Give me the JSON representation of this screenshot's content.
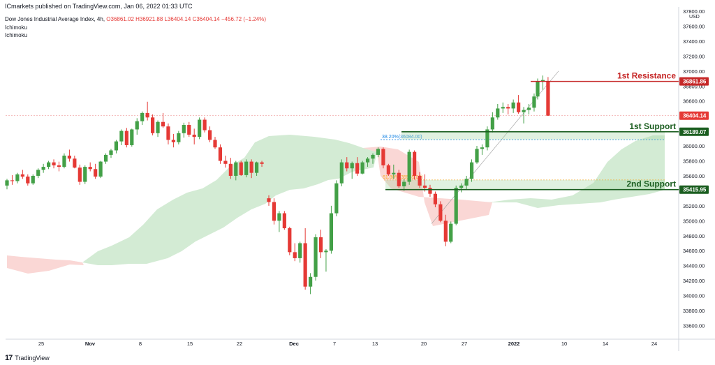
{
  "header": {
    "published": "ICmarkets published on TradingView.com, Jan 06, 2022 01:33 UTC",
    "symbol": "Dow Jones Industrial Average Index, 4h,",
    "open": "O36861.02",
    "high": "H36921.88",
    "low": "L36404.14",
    "close": "C36404.14",
    "change": "−456.72 (−1.24%)",
    "indicators": [
      "Ichimoku",
      "Ichimoku"
    ]
  },
  "axis": {
    "currency": "USD",
    "x_ticks": [
      "25",
      "Nov",
      "8",
      "15",
      "22",
      "Dec",
      "7",
      "13",
      "20",
      "27",
      "2022",
      "10",
      "14",
      "24"
    ]
  },
  "footer": {
    "logo": "17",
    "brand": "TradingView"
  },
  "chart_data": {
    "type": "candlestick",
    "title": "Dow Jones Industrial Average Index, 4h",
    "ylabel": "USD",
    "ylim": [
      33400,
      37800
    ],
    "y_ticks": [
      33600,
      33800,
      34000,
      34200,
      34400,
      34600,
      34800,
      35000,
      35200,
      35400,
      35600,
      35800,
      36000,
      36200,
      36400,
      36600,
      36800,
      37000,
      37200,
      37400,
      37600,
      37800
    ],
    "y_tick_labels": [
      "33600.00",
      "33800.00",
      "34000.00",
      "34200.00",
      "34400.00",
      "34600.00",
      "34800.00",
      "35000.00",
      "35200.00",
      "35400.00",
      "35600.00",
      "35800.00",
      "36000.00",
      "36200.00",
      "36400.00",
      "36600.00",
      "36800.00",
      "37000.00",
      "37200.00",
      "37400.00",
      "37600.00",
      "37800.00"
    ],
    "price_tags": [
      {
        "label": "36861.86",
        "value": 36861.86,
        "color": "#c62828"
      },
      {
        "label": "36404.14",
        "value": 36404.14,
        "color": "#e53935"
      },
      {
        "label": "36189.07",
        "value": 36189.07,
        "color": "#1b5e20"
      },
      {
        "label": "35415.95",
        "value": 35415.95,
        "color": "#1b5e20"
      }
    ],
    "levels": [
      {
        "name": "1st Resistance",
        "value": 36861.86,
        "color": "#c62828"
      },
      {
        "name": "1st Support",
        "value": 36189.07,
        "color": "#1b5e20"
      },
      {
        "name": "2nd Support",
        "value": 35415.95,
        "color": "#1b5e20"
      }
    ],
    "fibonacci": [
      {
        "label": "38.20%(36084.00)",
        "value": 36084.0,
        "color": "#1e88e5"
      },
      {
        "label": "61.80%(35545.00)",
        "value": 35545.0,
        "color": "#f9a825"
      }
    ],
    "candles": [
      [
        35470,
        35560,
        35420,
        35540
      ],
      [
        35540,
        35610,
        35480,
        35530
      ],
      [
        35530,
        35640,
        35500,
        35620
      ],
      [
        35620,
        35680,
        35560,
        35590
      ],
      [
        35590,
        35620,
        35470,
        35500
      ],
      [
        35500,
        35620,
        35480,
        35600
      ],
      [
        35600,
        35700,
        35570,
        35680
      ],
      [
        35680,
        35760,
        35640,
        35720
      ],
      [
        35720,
        35800,
        35690,
        35780
      ],
      [
        35780,
        35820,
        35700,
        35740
      ],
      [
        35740,
        35790,
        35660,
        35720
      ],
      [
        35720,
        35900,
        35700,
        35870
      ],
      [
        35870,
        35950,
        35790,
        35830
      ],
      [
        35830,
        35870,
        35700,
        35710
      ],
      [
        35710,
        35750,
        35480,
        35520
      ],
      [
        35520,
        35740,
        35490,
        35720
      ],
      [
        35720,
        35780,
        35660,
        35690
      ],
      [
        35690,
        35760,
        35560,
        35590
      ],
      [
        35590,
        35800,
        35570,
        35790
      ],
      [
        35790,
        35900,
        35760,
        35880
      ],
      [
        35880,
        35960,
        35840,
        35940
      ],
      [
        35940,
        36080,
        35900,
        36060
      ],
      [
        36060,
        36220,
        36010,
        36200
      ],
      [
        36200,
        36240,
        35980,
        36010
      ],
      [
        36010,
        36230,
        35990,
        36220
      ],
      [
        36220,
        36370,
        36150,
        36330
      ],
      [
        36330,
        36460,
        36280,
        36440
      ],
      [
        36440,
        36590,
        36340,
        36380
      ],
      [
        36380,
        36420,
        36140,
        36170
      ],
      [
        36170,
        36340,
        36120,
        36320
      ],
      [
        36320,
        36440,
        36240,
        36260
      ],
      [
        36260,
        36300,
        36020,
        36080
      ],
      [
        36080,
        36160,
        35980,
        36050
      ],
      [
        36050,
        36200,
        36020,
        36170
      ],
      [
        36170,
        36310,
        36110,
        36280
      ],
      [
        36280,
        36320,
        36120,
        36150
      ],
      [
        36150,
        36230,
        36020,
        36120
      ],
      [
        36120,
        36380,
        36090,
        36350
      ],
      [
        36350,
        36380,
        36180,
        36210
      ],
      [
        36210,
        36260,
        36050,
        36080
      ],
      [
        36080,
        36120,
        35960,
        35980
      ],
      [
        35980,
        36020,
        35760,
        35800
      ],
      [
        35800,
        35870,
        35710,
        35760
      ],
      [
        35760,
        35840,
        35560,
        35600
      ],
      [
        35600,
        35800,
        35540,
        35780
      ],
      [
        35780,
        35800,
        35600,
        35610
      ],
      [
        35610,
        35820,
        35580,
        35790
      ],
      [
        35790,
        35820,
        35570,
        35640
      ],
      [
        35640,
        35790,
        35600,
        35780
      ],
      [
        35780,
        35800,
        35720,
        35760
      ],
      [
        35300,
        35340,
        35200,
        35250
      ],
      [
        35250,
        35300,
        34950,
        35000
      ],
      [
        35000,
        35130,
        34850,
        35100
      ],
      [
        35100,
        35130,
        34880,
        34900
      ],
      [
        34900,
        34920,
        34540,
        34580
      ],
      [
        34580,
        34700,
        34460,
        34500
      ],
      [
        34500,
        34720,
        34440,
        34700
      ],
      [
        34700,
        34900,
        34080,
        34120
      ],
      [
        34120,
        34300,
        34020,
        34250
      ],
      [
        34250,
        34820,
        34200,
        34780
      ],
      [
        34780,
        34880,
        34500,
        34580
      ],
      [
        34580,
        34620,
        34320,
        34600
      ],
      [
        34600,
        35200,
        34560,
        35100
      ],
      [
        35100,
        35540,
        35060,
        35500
      ],
      [
        35500,
        35820,
        35460,
        35780
      ],
      [
        35780,
        35850,
        35660,
        35700
      ],
      [
        35700,
        35790,
        35560,
        35770
      ],
      [
        35770,
        35850,
        35600,
        35630
      ],
      [
        35630,
        35800,
        35620,
        35780
      ],
      [
        35780,
        35850,
        35720,
        35830
      ],
      [
        35830,
        35900,
        35760,
        35880
      ],
      [
        35880,
        35980,
        35850,
        35960
      ],
      [
        35960,
        35980,
        35700,
        35740
      ],
      [
        35740,
        35760,
        35600,
        35620
      ],
      [
        35620,
        35750,
        35560,
        35640
      ],
      [
        35640,
        35680,
        35440,
        35460
      ],
      [
        35460,
        35560,
        35400,
        35520
      ],
      [
        35520,
        35950,
        35480,
        35920
      ],
      [
        35920,
        35940,
        35550,
        35600
      ],
      [
        35600,
        35650,
        35440,
        35470
      ],
      [
        35470,
        35620,
        35390,
        35440
      ],
      [
        35440,
        35480,
        35320,
        35360
      ],
      [
        35360,
        35390,
        35180,
        35220
      ],
      [
        35220,
        35260,
        34980,
        35000
      ],
      [
        35000,
        35080,
        34660,
        34720
      ],
      [
        34720,
        34990,
        34700,
        34960
      ],
      [
        34960,
        35470,
        34940,
        35440
      ],
      [
        35440,
        35500,
        35380,
        35470
      ],
      [
        35470,
        35600,
        35420,
        35560
      ],
      [
        35560,
        35820,
        35520,
        35780
      ],
      [
        35780,
        36000,
        35760,
        35960
      ],
      [
        35960,
        36020,
        35880,
        35980
      ],
      [
        35980,
        36260,
        35940,
        36220
      ],
      [
        36220,
        36450,
        36180,
        36380
      ],
      [
        36380,
        36560,
        36350,
        36500
      ],
      [
        36500,
        36580,
        36440,
        36520
      ],
      [
        36520,
        36560,
        36420,
        36500
      ],
      [
        36500,
        36620,
        36440,
        36580
      ],
      [
        36580,
        36680,
        36430,
        36450
      ],
      [
        36450,
        36520,
        36300,
        36480
      ],
      [
        36480,
        36560,
        36420,
        36510
      ],
      [
        36510,
        36700,
        36460,
        36660
      ],
      [
        36660,
        36900,
        36620,
        36860
      ],
      [
        36860,
        36940,
        36750,
        36880
      ],
      [
        36860,
        36920,
        36400,
        36404
      ]
    ]
  }
}
